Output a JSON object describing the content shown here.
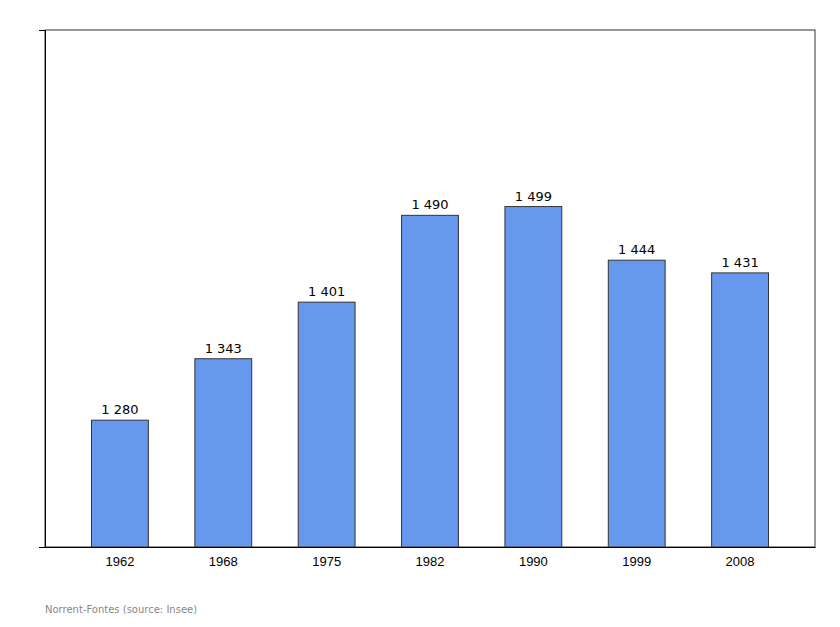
{
  "chart_data": {
    "type": "bar",
    "categories": [
      "1962",
      "1968",
      "1975",
      "1982",
      "1990",
      "1999",
      "2008"
    ],
    "values": [
      1280,
      1343,
      1401,
      1490,
      1499,
      1444,
      1431
    ],
    "value_labels": [
      "1 280",
      "1 343",
      "1 401",
      "1 490",
      "1 499",
      "1 444",
      "1 431"
    ],
    "data_labels": true,
    "color": "#6699ee",
    "ylim": [
      1150,
      1680
    ],
    "yticks": [],
    "tick_labels": "x",
    "grid": false,
    "annotation": "Norrent-Fontes    (source: Insee)"
  }
}
